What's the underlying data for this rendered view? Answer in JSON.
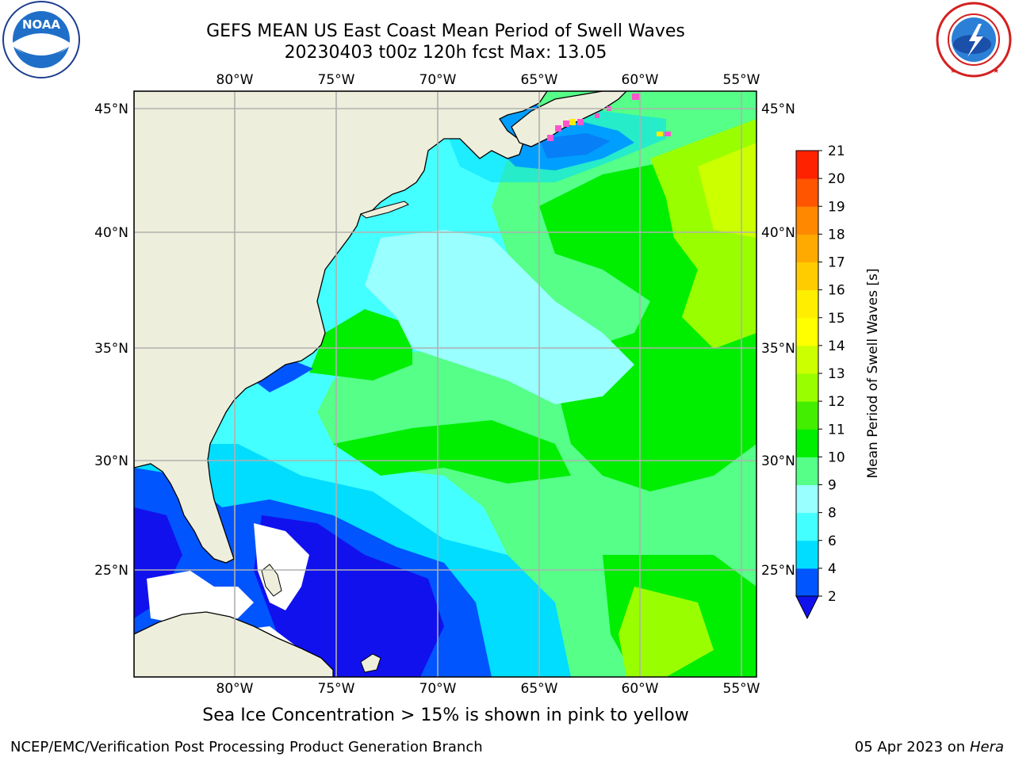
{
  "header": {
    "title_line1": "GEFS MEAN US East Coast Mean Period of Swell Waves",
    "title_line2": "20230403 t00z 120h fcst   Max: 13.05"
  },
  "logos": {
    "left": {
      "icon": "noaa-logo",
      "text": "NOAA",
      "ring_text": "NATIONAL OCEANIC AND ATMOSPHERIC ADMINISTRATION · U.S. DEPARTMENT OF COMMERCE"
    },
    "right": {
      "icon": "nws-logo",
      "ring_text": "NATIONAL WEATHER SERVICE"
    }
  },
  "map": {
    "lon_labels": [
      "80°W",
      "75°W",
      "70°W",
      "65°W",
      "60°W",
      "55°W"
    ],
    "lat_labels": [
      "45°N",
      "40°N",
      "35°N",
      "30°N",
      "25°N"
    ],
    "lon_range": [
      -85,
      -55
    ],
    "lat_range": [
      20,
      46
    ],
    "land_color": "#eeeedc",
    "grid_color": "#b0b0b0",
    "ice_colors": [
      "#ff55cc",
      "#ffee00"
    ]
  },
  "colorbar": {
    "label": "Mean Period of Swell Waves [s]",
    "ticks": [
      "2",
      "4",
      "6",
      "8",
      "9",
      "10",
      "11",
      "12",
      "13",
      "14",
      "15",
      "16",
      "17",
      "18",
      "19",
      "20",
      "21"
    ],
    "colors": [
      "#0055ff",
      "#00ddff",
      "#44ffff",
      "#99ffff",
      "#55ff88",
      "#00ee00",
      "#44ee00",
      "#99ff00",
      "#ccff00",
      "#ffff00",
      "#ffee00",
      "#ffcc00",
      "#ffaa00",
      "#ff8800",
      "#ff5500",
      "#ff2200",
      "#ff0000"
    ],
    "under_color": "#1111ee"
  },
  "caption": "Sea Ice Concentration > 15% is shown in pink to yellow",
  "footer": {
    "left": "NCEP/EMC/Verification Post Processing Product Generation Branch",
    "right_date": "05 Apr 2023 on",
    "right_host": "Hera"
  }
}
